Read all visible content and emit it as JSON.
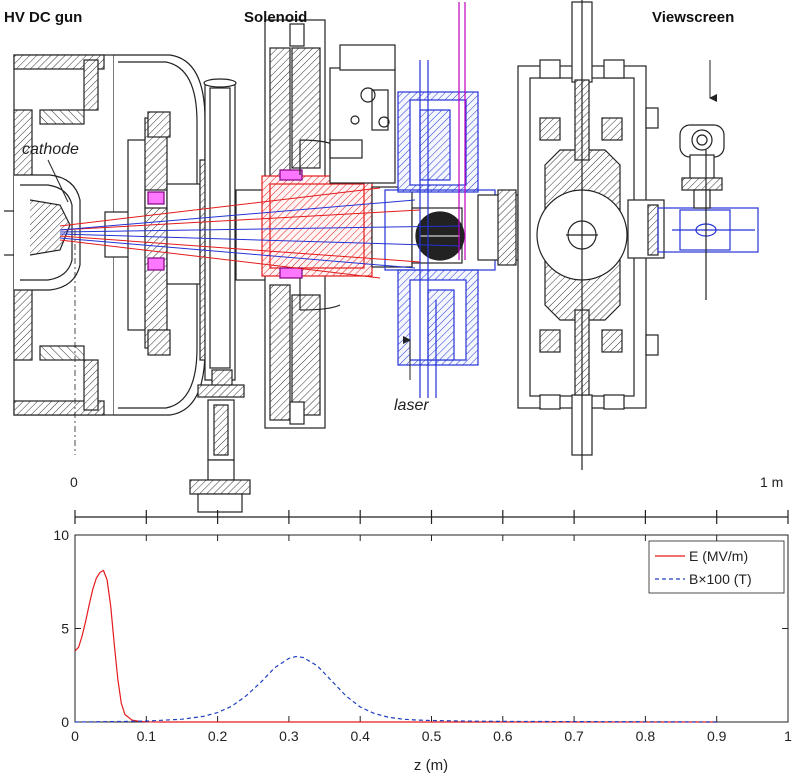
{
  "labels": {
    "gun": "HV DC gun",
    "solenoid": "Solenoid",
    "viewscreen": "Viewscreen",
    "cathode": "cathode",
    "laser": "laser"
  },
  "scale": {
    "start": "0",
    "end": "1 m"
  },
  "colors": {
    "e_field": "#e41a1c",
    "b_field": "#1f3fbf",
    "beam_red": "#e41a1c",
    "beam_blue": "#2433d6",
    "laser": "#c000c0"
  },
  "chart_data": {
    "type": "line",
    "xlabel": "z (m)",
    "xlim": [
      0,
      1
    ],
    "ylim": [
      0,
      10
    ],
    "xticks": [
      "0",
      "0.1",
      "0.2",
      "0.3",
      "0.4",
      "0.5",
      "0.6",
      "0.7",
      "0.8",
      "0.9",
      "1"
    ],
    "yticks": [
      "0",
      "5",
      "10"
    ],
    "legend_position": "top-right",
    "series": [
      {
        "name": "E (MV/m)",
        "style": "solid",
        "color": "#e41a1c",
        "x": [
          0,
          0.005,
          0.01,
          0.015,
          0.02,
          0.025,
          0.03,
          0.035,
          0.04,
          0.045,
          0.05,
          0.055,
          0.06,
          0.065,
          0.07,
          0.08,
          0.09,
          0.1,
          0.12,
          0.15,
          0.2,
          0.3,
          0.5,
          0.7,
          0.9
        ],
        "y": [
          3.8,
          4.0,
          4.6,
          5.4,
          6.3,
          7.1,
          7.7,
          8.0,
          8.1,
          7.6,
          6.2,
          4.2,
          2.3,
          1.0,
          0.4,
          0.1,
          0.03,
          0.01,
          0,
          0,
          0,
          0,
          0,
          0,
          0
        ]
      },
      {
        "name": "B×100 (T)",
        "style": "dashed",
        "color": "#1f3fbf",
        "x": [
          0,
          0.05,
          0.1,
          0.15,
          0.18,
          0.2,
          0.22,
          0.24,
          0.26,
          0.28,
          0.3,
          0.31,
          0.32,
          0.34,
          0.36,
          0.38,
          0.4,
          0.42,
          0.44,
          0.46,
          0.48,
          0.5,
          0.55,
          0.6,
          0.7,
          0.8,
          0.9
        ],
        "y": [
          0,
          0.02,
          0.05,
          0.15,
          0.3,
          0.5,
          0.85,
          1.4,
          2.1,
          2.9,
          3.4,
          3.5,
          3.45,
          3.0,
          2.2,
          1.4,
          0.8,
          0.45,
          0.25,
          0.15,
          0.1,
          0.08,
          0.05,
          0.03,
          0.02,
          0.01,
          0
        ]
      }
    ]
  }
}
